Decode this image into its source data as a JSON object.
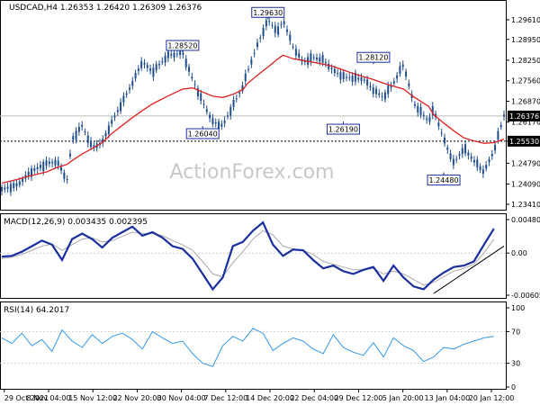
{
  "header": {
    "symbol_line": "USDCAD,H4  1.26353 1.26420 1.26309 1.26376"
  },
  "watermark": "ActionForex.com",
  "colors": {
    "candle": "#1f4e8c",
    "ma": "#e02020",
    "macd": "#1a2fa0",
    "signal": "#aaaaaa",
    "rsi": "#3399ee",
    "grid": "#cfcfcf",
    "callout_border": "#1a2fa0",
    "callout_fill": "#ffffff",
    "price_tag": "#000000"
  },
  "price_axis": {
    "ticks": [
      "1.29610",
      "1.28950",
      "1.28250",
      "1.27560",
      "1.26870",
      "1.26170",
      "1.25530",
      "1.24790",
      "1.24090",
      "1.23410"
    ],
    "current_price": "1.26376",
    "support_level": "1.25530"
  },
  "callouts": [
    "1.29630",
    "1.28520",
    "1.28120",
    "1.26190",
    "1.26040",
    "1.24480"
  ],
  "macd": {
    "label": "MACD(12,26,9) 0.003435 0.002395",
    "ticks": [
      "0.004809",
      "0.00",
      "-0.00605"
    ]
  },
  "rsi": {
    "label": "RSI(14) 64.2017",
    "ticks": [
      "100",
      "70",
      "30",
      "0"
    ]
  },
  "time_axis": [
    "29 Oct 2021",
    "8 Nov 04:00",
    "15 Nov 12:00",
    "22 Nov 20:00",
    "30 Nov 04:00",
    "7 Dec 12:00",
    "14 Dec 20:00",
    "22 Dec 04:00",
    "29 Dec 12:00",
    "5 Jan 20:00",
    "13 Jan 04:00",
    "20 Jan 12:00"
  ],
  "chart_data": {
    "type": "line",
    "price": {
      "ylim": [
        1.2341,
        1.2991
      ],
      "x": [
        0,
        3,
        6,
        9,
        11,
        13,
        14,
        16,
        18,
        20,
        22,
        24,
        26,
        28,
        30,
        33,
        36,
        38,
        40,
        42,
        44,
        46,
        48,
        49,
        51,
        53,
        55,
        56,
        58,
        60,
        62,
        64,
        66,
        68,
        70,
        72,
        74,
        76,
        78,
        80,
        82,
        85,
        86,
        88,
        90,
        92,
        94,
        96,
        98,
        100
      ],
      "close": [
        1.239,
        1.2405,
        1.2452,
        1.2478,
        1.2485,
        1.2422,
        1.2558,
        1.2605,
        1.2532,
        1.2548,
        1.262,
        1.2683,
        1.2748,
        1.282,
        1.2785,
        1.284,
        1.285,
        1.276,
        1.2685,
        1.2618,
        1.2604,
        1.2672,
        1.2736,
        1.279,
        1.288,
        1.296,
        1.292,
        1.2962,
        1.287,
        1.2818,
        1.2835,
        1.2826,
        1.279,
        1.277,
        1.2765,
        1.2762,
        1.2725,
        1.27,
        1.2748,
        1.2812,
        1.268,
        1.262,
        1.266,
        1.256,
        1.2478,
        1.253,
        1.2488,
        1.245,
        1.252,
        1.264
      ],
      "ma": [
        1.2412,
        1.2424,
        1.2438,
        1.245,
        1.2465,
        1.2475,
        1.2488,
        1.251,
        1.2528,
        1.2548,
        1.258,
        1.2606,
        1.2632,
        1.2656,
        1.2678,
        1.2704,
        1.2728,
        1.2732,
        1.2718,
        1.2704,
        1.27,
        1.271,
        1.2726,
        1.2748,
        1.2776,
        1.2802,
        1.283,
        1.2842,
        1.283,
        1.2824,
        1.2818,
        1.2812,
        1.2804,
        1.2792,
        1.278,
        1.277,
        1.276,
        1.2748,
        1.2738,
        1.2728,
        1.2702,
        1.267,
        1.2642,
        1.2614,
        1.2588,
        1.2564,
        1.2554,
        1.2546,
        1.2548,
        1.256
      ]
    },
    "macd": {
      "ylim": [
        -0.00605,
        0.004809
      ],
      "x": [
        0,
        2,
        4,
        6,
        8,
        10,
        12,
        14,
        16,
        18,
        20,
        22,
        24,
        26,
        28,
        30,
        32,
        34,
        36,
        38,
        40,
        42,
        44,
        46,
        48,
        50,
        52,
        54,
        56,
        58,
        60,
        62,
        64,
        66,
        68,
        70,
        72,
        74,
        76,
        78,
        80,
        82,
        84,
        86,
        88,
        90,
        92,
        94,
        96,
        98
      ],
      "macd": [
        -0.0005,
        -0.0004,
        0.0002,
        0.001,
        0.0018,
        0.0012,
        -0.001,
        0.002,
        0.0028,
        0.002,
        0.0008,
        0.0022,
        0.003,
        0.0038,
        0.0025,
        0.003,
        0.0022,
        0.001,
        0.0006,
        -0.0008,
        -0.003,
        -0.0052,
        -0.0035,
        0.001,
        0.0016,
        0.0032,
        0.0044,
        0.0012,
        -0.0004,
        0.0005,
        0.0004,
        -0.001,
        -0.0022,
        -0.0018,
        -0.0026,
        -0.003,
        -0.0024,
        -0.002,
        -0.004,
        -0.0018,
        -0.0035,
        -0.0048,
        -0.0052,
        -0.0038,
        -0.0028,
        -0.002,
        -0.0018,
        -0.0012,
        0.0012,
        0.0035
      ],
      "signal": [
        -0.0008,
        -0.0006,
        -0.0002,
        0.0004,
        0.001,
        0.0013,
        0.0004,
        0.0012,
        0.002,
        0.0022,
        0.0016,
        0.0018,
        0.0024,
        0.003,
        0.0028,
        0.0028,
        0.0025,
        0.0018,
        0.0012,
        0.0004,
        -0.0012,
        -0.003,
        -0.0034,
        -0.0014,
        0.0002,
        0.002,
        0.0032,
        0.0026,
        0.001,
        0.0006,
        0.0004,
        -0.0002,
        -0.0012,
        -0.0016,
        -0.002,
        -0.0024,
        -0.0024,
        -0.0022,
        -0.003,
        -0.0026,
        -0.003,
        -0.0038,
        -0.0046,
        -0.0042,
        -0.0034,
        -0.0026,
        -0.0022,
        -0.0016,
        0.0,
        0.002
      ],
      "trendline": {
        "x": [
          86,
          100
        ],
        "y": [
          -0.0058,
          0.001
        ]
      }
    },
    "rsi": {
      "ylim": [
        0,
        100
      ],
      "x": [
        0,
        2,
        4,
        6,
        8,
        10,
        12,
        14,
        16,
        18,
        20,
        22,
        24,
        26,
        28,
        30,
        32,
        34,
        36,
        38,
        40,
        42,
        44,
        46,
        48,
        50,
        52,
        54,
        56,
        58,
        60,
        62,
        64,
        66,
        68,
        70,
        72,
        74,
        76,
        78,
        80,
        82,
        84,
        86,
        88,
        90,
        92,
        94,
        96,
        98
      ],
      "values": [
        62,
        55,
        68,
        52,
        60,
        45,
        72,
        58,
        50,
        66,
        55,
        64,
        68,
        60,
        48,
        70,
        62,
        55,
        58,
        42,
        30,
        26,
        52,
        64,
        58,
        74,
        68,
        46,
        55,
        62,
        58,
        48,
        42,
        66,
        50,
        44,
        40,
        56,
        38,
        62,
        52,
        46,
        32,
        38,
        50,
        48,
        54,
        58,
        62,
        64
      ]
    }
  }
}
